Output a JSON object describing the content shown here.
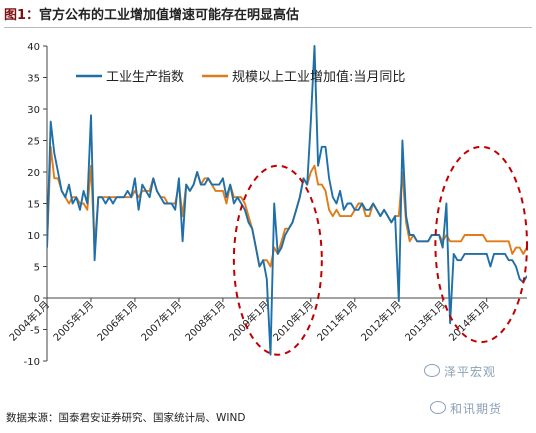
{
  "figure": {
    "label": "图1：",
    "title": "官方公布的工业增加值增速可能存在明显高估"
  },
  "source_text": "数据来源：国泰君安证券研究、国家统计局、WIND",
  "watermarks": [
    "泽平宏观",
    "和讯期货"
  ],
  "colors": {
    "series_blue": "#1f6fa8",
    "series_orange": "#e07b1a",
    "circle": "#c00000",
    "title_tag": "#7a1010"
  },
  "chart_data": {
    "type": "line",
    "title": "",
    "xlabel": "",
    "ylabel": "",
    "ylim": [
      -10,
      40
    ],
    "yticks": [
      -10,
      -5,
      0,
      5,
      10,
      15,
      20,
      25,
      30,
      35,
      40
    ],
    "xlim": [
      "2004-01",
      "2014-12"
    ],
    "xtick_labels": [
      "2004年1月",
      "2005年1月",
      "2006年1月",
      "2007年1月",
      "2008年1月",
      "2009年1月",
      "2010年1月",
      "2011年1月",
      "2012年1月",
      "2013年1月",
      "2014年1月"
    ],
    "legend_position": "top",
    "grid": false,
    "series": [
      {
        "name": "工业生产指数",
        "color": "#1f6fa8",
        "points": [
          [
            "2004-01",
            8
          ],
          [
            "2004-02",
            28
          ],
          [
            "2004-03",
            23
          ],
          [
            "2004-04",
            20
          ],
          [
            "2004-05",
            17
          ],
          [
            "2004-06",
            16
          ],
          [
            "2004-07",
            18
          ],
          [
            "2004-08",
            15
          ],
          [
            "2004-09",
            16
          ],
          [
            "2004-10",
            14
          ],
          [
            "2004-11",
            17
          ],
          [
            "2004-12",
            15
          ],
          [
            "2005-01",
            29
          ],
          [
            "2005-02",
            6
          ],
          [
            "2005-03",
            16
          ],
          [
            "2005-04",
            16
          ],
          [
            "2005-05",
            15
          ],
          [
            "2005-06",
            16
          ],
          [
            "2005-07",
            15
          ],
          [
            "2005-08",
            16
          ],
          [
            "2005-09",
            16
          ],
          [
            "2005-10",
            16
          ],
          [
            "2005-11",
            17
          ],
          [
            "2005-12",
            16
          ],
          [
            "2006-01",
            19
          ],
          [
            "2006-02",
            14
          ],
          [
            "2006-03",
            18
          ],
          [
            "2006-04",
            17
          ],
          [
            "2006-05",
            16
          ],
          [
            "2006-06",
            19
          ],
          [
            "2006-07",
            17
          ],
          [
            "2006-08",
            16
          ],
          [
            "2006-09",
            15
          ],
          [
            "2006-10",
            15
          ],
          [
            "2006-11",
            15
          ],
          [
            "2006-12",
            14
          ],
          [
            "2007-01",
            19
          ],
          [
            "2007-02",
            9
          ],
          [
            "2007-03",
            18
          ],
          [
            "2007-04",
            17
          ],
          [
            "2007-05",
            18
          ],
          [
            "2007-06",
            20
          ],
          [
            "2007-07",
            18
          ],
          [
            "2007-08",
            18
          ],
          [
            "2007-09",
            19
          ],
          [
            "2007-10",
            18
          ],
          [
            "2007-11",
            18
          ],
          [
            "2007-12",
            18
          ],
          [
            "2008-01",
            19
          ],
          [
            "2008-02",
            16
          ],
          [
            "2008-03",
            18
          ],
          [
            "2008-04",
            15
          ],
          [
            "2008-05",
            16
          ],
          [
            "2008-06",
            15
          ],
          [
            "2008-07",
            14
          ],
          [
            "2008-08",
            12
          ],
          [
            "2008-09",
            11
          ],
          [
            "2008-10",
            8
          ],
          [
            "2008-11",
            5
          ],
          [
            "2008-12",
            6
          ],
          [
            "2009-01",
            3
          ],
          [
            "2009-02",
            -9
          ],
          [
            "2009-03",
            15
          ],
          [
            "2009-04",
            7
          ],
          [
            "2009-05",
            8
          ],
          [
            "2009-06",
            10
          ],
          [
            "2009-07",
            11
          ],
          [
            "2009-08",
            12
          ],
          [
            "2009-09",
            14
          ],
          [
            "2009-10",
            16
          ],
          [
            "2009-11",
            19
          ],
          [
            "2009-12",
            18
          ],
          [
            "2010-01",
            28
          ],
          [
            "2010-02",
            40
          ],
          [
            "2010-03",
            21
          ],
          [
            "2010-04",
            24
          ],
          [
            "2010-05",
            24
          ],
          [
            "2010-06",
            19
          ],
          [
            "2010-07",
            16
          ],
          [
            "2010-08",
            15
          ],
          [
            "2010-09",
            17
          ],
          [
            "2010-10",
            14
          ],
          [
            "2010-11",
            15
          ],
          [
            "2010-12",
            15
          ],
          [
            "2011-01",
            14
          ],
          [
            "2011-02",
            14
          ],
          [
            "2011-03",
            15
          ],
          [
            "2011-04",
            14
          ],
          [
            "2011-05",
            14
          ],
          [
            "2011-06",
            15
          ],
          [
            "2011-07",
            14
          ],
          [
            "2011-08",
            13
          ],
          [
            "2011-09",
            14
          ],
          [
            "2011-10",
            13
          ],
          [
            "2011-11",
            12
          ],
          [
            "2011-12",
            13
          ],
          [
            "2012-01",
            -0.5
          ],
          [
            "2012-02",
            25
          ],
          [
            "2012-03",
            13
          ],
          [
            "2012-04",
            10
          ],
          [
            "2012-05",
            10
          ],
          [
            "2012-06",
            9
          ],
          [
            "2012-07",
            9
          ],
          [
            "2012-08",
            9
          ],
          [
            "2012-09",
            9
          ],
          [
            "2012-10",
            10
          ],
          [
            "2012-11",
            10
          ],
          [
            "2012-12",
            10
          ],
          [
            "2013-01",
            8
          ],
          [
            "2013-02",
            15
          ],
          [
            "2013-03",
            -4
          ],
          [
            "2013-04",
            7
          ],
          [
            "2013-05",
            6
          ],
          [
            "2013-06",
            6
          ],
          [
            "2013-07",
            7
          ],
          [
            "2013-08",
            7
          ],
          [
            "2013-09",
            7
          ],
          [
            "2013-10",
            7
          ],
          [
            "2013-11",
            7
          ],
          [
            "2013-12",
            7
          ],
          [
            "2014-01",
            7
          ],
          [
            "2014-02",
            5
          ],
          [
            "2014-03",
            7
          ],
          [
            "2014-04",
            7
          ],
          [
            "2014-05",
            7
          ],
          [
            "2014-06",
            7
          ],
          [
            "2014-07",
            6
          ],
          [
            "2014-08",
            6
          ],
          [
            "2014-09",
            5
          ],
          [
            "2014-10",
            3
          ],
          [
            "2014-11",
            2.5
          ],
          [
            "2014-12",
            3.5
          ]
        ]
      },
      {
        "name": "规模以上工业增加值:当月同比",
        "color": "#e07b1a",
        "points": [
          [
            "2004-01",
            8
          ],
          [
            "2004-02",
            24
          ],
          [
            "2004-03",
            19
          ],
          [
            "2004-04",
            19
          ],
          [
            "2004-05",
            17
          ],
          [
            "2004-06",
            16
          ],
          [
            "2004-07",
            15
          ],
          [
            "2004-08",
            16
          ],
          [
            "2004-09",
            16
          ],
          [
            "2004-10",
            15
          ],
          [
            "2004-11",
            15
          ],
          [
            "2004-12",
            14
          ],
          [
            "2005-01",
            21
          ],
          [
            "2005-02",
            8
          ],
          [
            "2005-03",
            16
          ],
          [
            "2005-04",
            16
          ],
          [
            "2005-05",
            16
          ],
          [
            "2005-06",
            16
          ],
          [
            "2005-07",
            16
          ],
          [
            "2005-08",
            16
          ],
          [
            "2005-09",
            16
          ],
          [
            "2005-10",
            16
          ],
          [
            "2005-11",
            16
          ],
          [
            "2005-12",
            16
          ],
          [
            "2006-01",
            17
          ],
          [
            "2006-02",
            16
          ],
          [
            "2006-03",
            17
          ],
          [
            "2006-04",
            17
          ],
          [
            "2006-05",
            17
          ],
          [
            "2006-06",
            19
          ],
          [
            "2006-07",
            17
          ],
          [
            "2006-08",
            16
          ],
          [
            "2006-09",
            16
          ],
          [
            "2006-10",
            15
          ],
          [
            "2006-11",
            15
          ],
          [
            "2006-12",
            15
          ],
          [
            "2007-01",
            18
          ],
          [
            "2007-02",
            13
          ],
          [
            "2007-03",
            18
          ],
          [
            "2007-04",
            17
          ],
          [
            "2007-05",
            18
          ],
          [
            "2007-06",
            20
          ],
          [
            "2007-07",
            18
          ],
          [
            "2007-08",
            19
          ],
          [
            "2007-09",
            19
          ],
          [
            "2007-10",
            18
          ],
          [
            "2007-11",
            17
          ],
          [
            "2007-12",
            17
          ],
          [
            "2008-01",
            17
          ],
          [
            "2008-02",
            15
          ],
          [
            "2008-03",
            18
          ],
          [
            "2008-04",
            16
          ],
          [
            "2008-05",
            16
          ],
          [
            "2008-06",
            16
          ],
          [
            "2008-07",
            15
          ],
          [
            "2008-08",
            13
          ],
          [
            "2008-09",
            11
          ],
          [
            "2008-10",
            8
          ],
          [
            "2008-11",
            5
          ],
          [
            "2008-12",
            6
          ],
          [
            "2009-01",
            6
          ],
          [
            "2009-02",
            5
          ],
          [
            "2009-03",
            8
          ],
          [
            "2009-04",
            7
          ],
          [
            "2009-05",
            9
          ],
          [
            "2009-06",
            11
          ],
          [
            "2009-07",
            11
          ],
          [
            "2009-08",
            12
          ],
          [
            "2009-09",
            14
          ],
          [
            "2009-10",
            16
          ],
          [
            "2009-11",
            19
          ],
          [
            "2009-12",
            18
          ],
          [
            "2010-01",
            20
          ],
          [
            "2010-02",
            21
          ],
          [
            "2010-03",
            18
          ],
          [
            "2010-04",
            18
          ],
          [
            "2010-05",
            17
          ],
          [
            "2010-06",
            14
          ],
          [
            "2010-07",
            13
          ],
          [
            "2010-08",
            14
          ],
          [
            "2010-09",
            13
          ],
          [
            "2010-10",
            13
          ],
          [
            "2010-11",
            13
          ],
          [
            "2010-12",
            13
          ],
          [
            "2011-01",
            14
          ],
          [
            "2011-02",
            15
          ],
          [
            "2011-03",
            15
          ],
          [
            "2011-04",
            13
          ],
          [
            "2011-05",
            13
          ],
          [
            "2011-06",
            15
          ],
          [
            "2011-07",
            14
          ],
          [
            "2011-08",
            13
          ],
          [
            "2011-09",
            14
          ],
          [
            "2011-10",
            13
          ],
          [
            "2011-11",
            12
          ],
          [
            "2011-12",
            13
          ],
          [
            "2012-01",
            13
          ],
          [
            "2012-02",
            20
          ],
          [
            "2012-03",
            12
          ],
          [
            "2012-04",
            9
          ],
          [
            "2012-05",
            10
          ],
          [
            "2012-06",
            9
          ],
          [
            "2012-07",
            9
          ],
          [
            "2012-08",
            9
          ],
          [
            "2012-09",
            9
          ],
          [
            "2012-10",
            10
          ],
          [
            "2012-11",
            10
          ],
          [
            "2012-12",
            10
          ],
          [
            "2013-01",
            9
          ],
          [
            "2013-02",
            10
          ],
          [
            "2013-03",
            9
          ],
          [
            "2013-04",
            9
          ],
          [
            "2013-05",
            9
          ],
          [
            "2013-06",
            9
          ],
          [
            "2013-07",
            10
          ],
          [
            "2013-08",
            10
          ],
          [
            "2013-09",
            10
          ],
          [
            "2013-10",
            10
          ],
          [
            "2013-11",
            10
          ],
          [
            "2013-12",
            10
          ],
          [
            "2014-01",
            9
          ],
          [
            "2014-02",
            9
          ],
          [
            "2014-03",
            9
          ],
          [
            "2014-04",
            9
          ],
          [
            "2014-05",
            9
          ],
          [
            "2014-06",
            9
          ],
          [
            "2014-07",
            9
          ],
          [
            "2014-08",
            7
          ],
          [
            "2014-09",
            8
          ],
          [
            "2014-10",
            8
          ],
          [
            "2014-11",
            7
          ],
          [
            "2014-12",
            8
          ]
        ]
      }
    ],
    "annotations": [
      {
        "type": "dashed-ellipse",
        "x_range": [
          "2008-04",
          "2010-04"
        ],
        "y_range": [
          -9,
          21
        ],
        "color": "#c00000"
      },
      {
        "type": "dashed-ellipse",
        "x_range": [
          "2012-11",
          "2014-12"
        ],
        "y_range": [
          -7,
          24
        ],
        "color": "#c00000"
      }
    ]
  }
}
